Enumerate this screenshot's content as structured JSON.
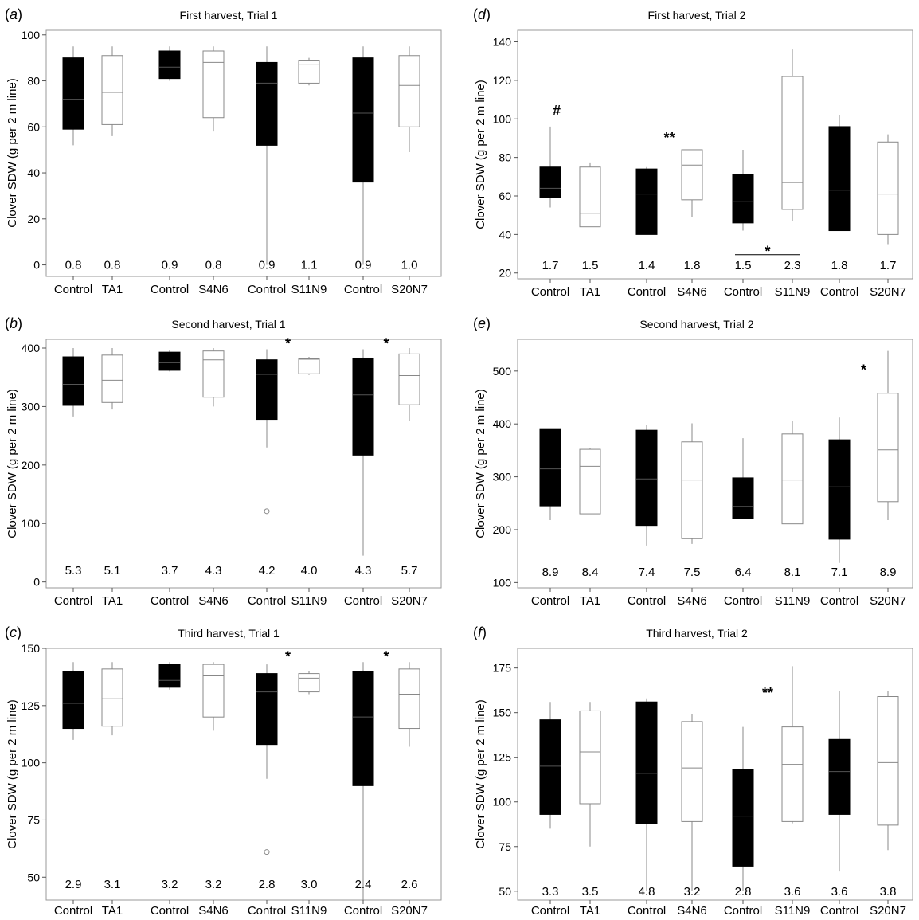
{
  "figure": {
    "ylabel": "Clover SDW (g per 2 m line)"
  },
  "chart_data": [
    {
      "id": "a",
      "type": "box",
      "letter": "a",
      "title": "First harvest, Trial 1",
      "ylim": [
        -5,
        102
      ],
      "yticks": [
        0,
        20,
        40,
        60,
        80,
        100
      ],
      "categories": [
        "Control",
        "TA1",
        "Control",
        "S4N6",
        "Control",
        "S11N9",
        "Control",
        "S20N7"
      ],
      "boxes": [
        {
          "fill": "black",
          "min": 52,
          "q1": 59,
          "median": 72,
          "q3": 90,
          "max": 95
        },
        {
          "fill": "white",
          "min": 56,
          "q1": 61,
          "median": 75,
          "q3": 91,
          "max": 95
        },
        {
          "fill": "black",
          "min": 80,
          "q1": 81,
          "median": 86,
          "q3": 93,
          "max": 95
        },
        {
          "fill": "white",
          "min": 58,
          "q1": 64,
          "median": 88,
          "q3": 93,
          "max": 95
        },
        {
          "fill": "black",
          "min": 0,
          "q1": 52,
          "median": 79,
          "q3": 88,
          "max": 95
        },
        {
          "fill": "white",
          "min": 78,
          "q1": 79,
          "median": 87,
          "q3": 89,
          "max": 90
        },
        {
          "fill": "black",
          "min": 0,
          "q1": 36,
          "median": 66,
          "q3": 90,
          "max": 95
        },
        {
          "fill": "white",
          "min": 49,
          "q1": 60,
          "median": 78,
          "q3": 91,
          "max": 95
        }
      ],
      "ratios": [
        "0.8",
        "0.8",
        "0.9",
        "0.8",
        "0.9",
        "1.1",
        "0.9",
        "1.0"
      ],
      "ratio_y": 0,
      "annotations": []
    },
    {
      "id": "b",
      "type": "box",
      "letter": "b",
      "title": "Second harvest, Trial 1",
      "ylim": [
        -10,
        415
      ],
      "yticks": [
        0,
        100,
        200,
        300,
        400
      ],
      "categories": [
        "Control",
        "TA1",
        "Control",
        "S4N6",
        "Control",
        "S11N9",
        "Control",
        "S20N7"
      ],
      "boxes": [
        {
          "fill": "black",
          "min": 283,
          "q1": 302,
          "median": 338,
          "q3": 385,
          "max": 400
        },
        {
          "fill": "white",
          "min": 295,
          "q1": 307,
          "median": 345,
          "q3": 388,
          "max": 400
        },
        {
          "fill": "black",
          "min": 360,
          "q1": 362,
          "median": 375,
          "q3": 393,
          "max": 397
        },
        {
          "fill": "white",
          "min": 300,
          "q1": 316,
          "median": 380,
          "q3": 395,
          "max": 400
        },
        {
          "fill": "black",
          "min": 230,
          "q1": 278,
          "median": 355,
          "q3": 380,
          "max": 398,
          "outliers": [
            121
          ]
        },
        {
          "fill": "white",
          "min": 354,
          "q1": 356,
          "median": 381,
          "q3": 382,
          "max": 385
        },
        {
          "fill": "black",
          "min": 45,
          "q1": 217,
          "median": 320,
          "q3": 383,
          "max": 398
        },
        {
          "fill": "white",
          "min": 275,
          "q1": 303,
          "median": 353,
          "q3": 390,
          "max": 400
        }
      ],
      "ratios": [
        "5.3",
        "5.1",
        "3.7",
        "4.3",
        "4.2",
        "4.0",
        "4.3",
        "5.7"
      ],
      "ratio_y": 20,
      "annotations": [
        {
          "text": "*",
          "between": [
            4,
            5
          ],
          "y": 410
        },
        {
          "text": "*",
          "between": [
            6,
            7
          ],
          "y": 410
        }
      ]
    },
    {
      "id": "c",
      "type": "box",
      "letter": "c",
      "title": "Third harvest, Trial 1",
      "ylim": [
        40,
        150
      ],
      "yticks": [
        50,
        75,
        100,
        125,
        150
      ],
      "categories": [
        "Control",
        "TA1",
        "Control",
        "S4N6",
        "Control",
        "S11N9",
        "Control",
        "S20N7"
      ],
      "boxes": [
        {
          "fill": "black",
          "min": 110,
          "q1": 115,
          "median": 126,
          "q3": 140,
          "max": 144
        },
        {
          "fill": "white",
          "min": 112,
          "q1": 116,
          "median": 128,
          "q3": 141,
          "max": 144
        },
        {
          "fill": "black",
          "min": 132,
          "q1": 133,
          "median": 136,
          "q3": 143,
          "max": 144
        },
        {
          "fill": "white",
          "min": 114,
          "q1": 120,
          "median": 138,
          "q3": 143,
          "max": 144
        },
        {
          "fill": "black",
          "min": 93,
          "q1": 108,
          "median": 131,
          "q3": 139,
          "max": 143,
          "outliers": [
            61
          ]
        },
        {
          "fill": "white",
          "min": 130,
          "q1": 131,
          "median": 137,
          "q3": 139,
          "max": 140
        },
        {
          "fill": "black",
          "min": 40,
          "q1": 90,
          "median": 120,
          "q3": 140,
          "max": 144
        },
        {
          "fill": "white",
          "min": 107,
          "q1": 115,
          "median": 130,
          "q3": 141,
          "max": 144
        }
      ],
      "ratios": [
        "2.9",
        "3.1",
        "3.2",
        "3.2",
        "2.8",
        "3.0",
        "2.4",
        "2.6"
      ],
      "ratio_y": 47,
      "annotations": [
        {
          "text": "*",
          "between": [
            4,
            5
          ],
          "y": 147
        },
        {
          "text": "*",
          "between": [
            6,
            7
          ],
          "y": 147
        }
      ]
    },
    {
      "id": "d",
      "type": "box",
      "letter": "d",
      "title": "First harvest, Trial 2",
      "ylim": [
        17,
        146
      ],
      "yticks": [
        20,
        40,
        60,
        80,
        100,
        120,
        140
      ],
      "categories": [
        "Control",
        "TA1",
        "Control",
        "S4N6",
        "Control",
        "S11N9",
        "Control",
        "S20N7"
      ],
      "boxes": [
        {
          "fill": "black",
          "min": 54,
          "q1": 59,
          "median": 64,
          "q3": 75,
          "max": 96
        },
        {
          "fill": "white",
          "min": 44,
          "q1": 44,
          "median": 51,
          "q3": 75,
          "max": 77
        },
        {
          "fill": "black",
          "min": 40,
          "q1": 40,
          "median": 61,
          "q3": 74,
          "max": 75
        },
        {
          "fill": "white",
          "min": 49,
          "q1": 58,
          "median": 76,
          "q3": 84,
          "max": 84
        },
        {
          "fill": "black",
          "min": 42,
          "q1": 46,
          "median": 57,
          "q3": 71,
          "max": 84
        },
        {
          "fill": "white",
          "min": 47,
          "q1": 53,
          "median": 67,
          "q3": 122,
          "max": 136
        },
        {
          "fill": "black",
          "min": 42,
          "q1": 42,
          "median": 63,
          "q3": 96,
          "max": 102
        },
        {
          "fill": "white",
          "min": 35,
          "q1": 40,
          "median": 61,
          "q3": 88,
          "max": 92
        }
      ],
      "ratios": [
        "1.7",
        "1.5",
        "1.4",
        "1.8",
        "1.5",
        "2.3",
        "1.8",
        "1.7"
      ],
      "ratio_y": 24,
      "annotations": [
        {
          "text": "#",
          "between": [
            0,
            1
          ],
          "y": 105
        },
        {
          "text": "**",
          "between": [
            2,
            3
          ],
          "y": 91
        },
        {
          "text": "*",
          "between": [
            4,
            5
          ],
          "y": 32,
          "bracket": [
            4,
            5
          ],
          "bracket_y": 29.5
        }
      ]
    },
    {
      "id": "e",
      "type": "box",
      "letter": "e",
      "title": "Second harvest, Trial 2",
      "ylim": [
        90,
        560
      ],
      "yticks": [
        100,
        200,
        300,
        400,
        500
      ],
      "categories": [
        "Control",
        "TA1",
        "Control",
        "S4N6",
        "Control",
        "S11N9",
        "Control",
        "S20N7"
      ],
      "boxes": [
        {
          "fill": "black",
          "min": 218,
          "q1": 245,
          "median": 315,
          "q3": 391,
          "max": 391
        },
        {
          "fill": "white",
          "min": 230,
          "q1": 230,
          "median": 320,
          "q3": 352,
          "max": 355
        },
        {
          "fill": "black",
          "min": 170,
          "q1": 208,
          "median": 296,
          "q3": 388,
          "max": 398
        },
        {
          "fill": "white",
          "min": 173,
          "q1": 183,
          "median": 294,
          "q3": 366,
          "max": 401
        },
        {
          "fill": "black",
          "min": 221,
          "q1": 221,
          "median": 244,
          "q3": 298,
          "max": 373
        },
        {
          "fill": "white",
          "min": 211,
          "q1": 211,
          "median": 294,
          "q3": 381,
          "max": 405
        },
        {
          "fill": "black",
          "min": 137,
          "q1": 182,
          "median": 281,
          "q3": 370,
          "max": 412
        },
        {
          "fill": "white",
          "min": 218,
          "q1": 253,
          "median": 351,
          "q3": 458,
          "max": 538
        }
      ],
      "ratios": [
        "8.9",
        "8.4",
        "7.4",
        "7.5",
        "6.4",
        "8.1",
        "7.1",
        "8.9"
      ],
      "ratio_y": 120,
      "annotations": [
        {
          "text": "*",
          "between": [
            6,
            7
          ],
          "y": 505
        }
      ]
    },
    {
      "id": "f",
      "type": "box",
      "letter": "f",
      "title": "Third harvest, Trial 2",
      "ylim": [
        45,
        186
      ],
      "yticks": [
        50,
        75,
        100,
        125,
        150,
        175
      ],
      "categories": [
        "Control",
        "TA1",
        "Control",
        "S4N6",
        "Control",
        "S11N9",
        "Control",
        "S20N7"
      ],
      "boxes": [
        {
          "fill": "black",
          "min": 85,
          "q1": 93,
          "median": 120,
          "q3": 146,
          "max": 156
        },
        {
          "fill": "white",
          "min": 75,
          "q1": 99,
          "median": 128,
          "q3": 151,
          "max": 156
        },
        {
          "fill": "black",
          "min": 50,
          "q1": 88,
          "median": 116,
          "q3": 156,
          "max": 158
        },
        {
          "fill": "white",
          "min": 50,
          "q1": 89,
          "median": 119,
          "q3": 145,
          "max": 149
        },
        {
          "fill": "black",
          "min": 50,
          "q1": 64,
          "median": 92,
          "q3": 118,
          "max": 142
        },
        {
          "fill": "white",
          "min": 88,
          "q1": 89,
          "median": 121,
          "q3": 142,
          "max": 176
        },
        {
          "fill": "black",
          "min": 61,
          "q1": 93,
          "median": 117,
          "q3": 135,
          "max": 162
        },
        {
          "fill": "white",
          "min": 73,
          "q1": 87,
          "median": 122,
          "q3": 159,
          "max": 162
        }
      ],
      "ratios": [
        "3.3",
        "3.5",
        "4.8",
        "3.2",
        "2.8",
        "3.6",
        "3.6",
        "3.8"
      ],
      "ratio_y": 50,
      "annotations": [
        {
          "text": "**",
          "between": [
            4,
            5
          ],
          "y": 162
        }
      ]
    }
  ]
}
